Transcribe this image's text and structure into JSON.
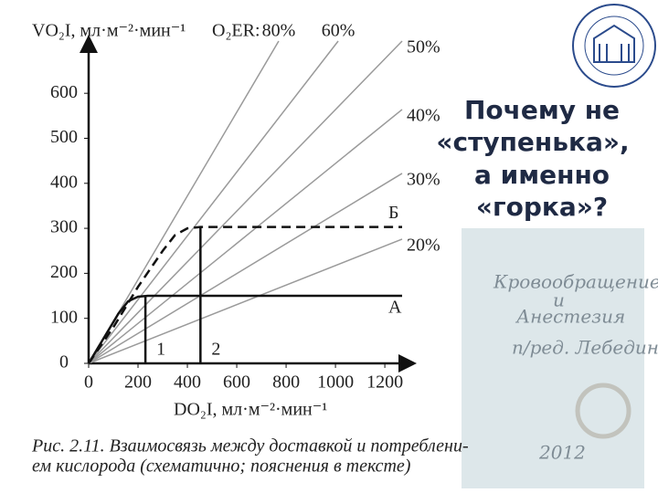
{
  "chart_data": {
    "type": "line",
    "ylabel": "VO₂I, мл·м⁻²·мин⁻¹",
    "series_label": "O₂ER:",
    "xlabel": "DO₂I, мл·м⁻²·мин⁻¹",
    "caption": [
      "Рис. 2.11. Взаимосвязь между доставкой и потреблени-",
      "ем кислорода (схематично; пояснения в тексте)"
    ],
    "xlim": [
      0,
      1270
    ],
    "ylim": [
      0,
      716
    ],
    "xticks": [
      0,
      200,
      400,
      600,
      800,
      1000,
      1200
    ],
    "yticks": [
      0,
      100,
      200,
      300,
      400,
      500,
      600
    ],
    "series": [
      {
        "name": "80%",
        "color": "#9a9a9a",
        "x": [
          0,
          770
        ],
        "values": [
          0,
          716
        ]
      },
      {
        "name": "60%",
        "color": "#9a9a9a",
        "x": [
          0,
          1011
        ],
        "values": [
          0,
          716
        ]
      },
      {
        "name": "50%",
        "color": "#9a9a9a",
        "x": [
          0,
          1270
        ],
        "values": [
          0,
          716
        ]
      },
      {
        "name": "40%",
        "color": "#9a9a9a",
        "x": [
          0,
          1270
        ],
        "values": [
          0,
          564
        ]
      },
      {
        "name": "30%",
        "color": "#9a9a9a",
        "x": [
          0,
          1270
        ],
        "values": [
          0,
          422
        ]
      },
      {
        "name": "20%",
        "color": "#9a9a9a",
        "x": [
          0,
          1270
        ],
        "values": [
          0,
          276
        ]
      },
      {
        "name": "А",
        "color": "#111111",
        "x": [
          0,
          60,
          120,
          160,
          200,
          240,
          1270
        ],
        "values": [
          0,
          55,
          110,
          138,
          148,
          150,
          150
        ]
      },
      {
        "name": "Б",
        "color": "#111111",
        "dash": true,
        "x": [
          0,
          100,
          200,
          300,
          350,
          400,
          453,
          1270
        ],
        "values": [
          0,
          80,
          170,
          250,
          285,
          300,
          303,
          303
        ]
      },
      {
        "name": "1",
        "color": "#111111",
        "x": [
          230,
          230
        ],
        "values": [
          0,
          150
        ]
      },
      {
        "name": "2",
        "color": "#111111",
        "x": [
          453,
          453
        ],
        "values": [
          0,
          303
        ]
      }
    ]
  },
  "slide": {
    "title_lines": [
      "Почему не",
      "«ступенька»,",
      "а именно",
      "«горка»?"
    ],
    "book": {
      "title": [
        "Кровообращение",
        "и",
        "Анестезия"
      ],
      "editor": "п/ред. Лебединского",
      "year": "2012"
    }
  }
}
